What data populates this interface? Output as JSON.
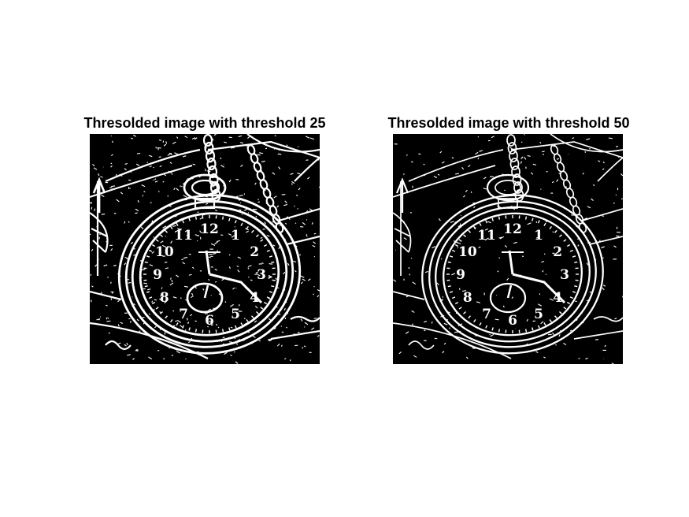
{
  "figure": {
    "background_color": "#ffffff",
    "panels": [
      {
        "title": "Thresolded image with threshold 25",
        "image_description": "binary edge map of a pocket watch on chain, white edges on black"
      },
      {
        "title": "Thresolded image with threshold 50",
        "image_description": "binary edge map of a pocket watch on chain, white edges on black, fewer edges"
      }
    ]
  }
}
